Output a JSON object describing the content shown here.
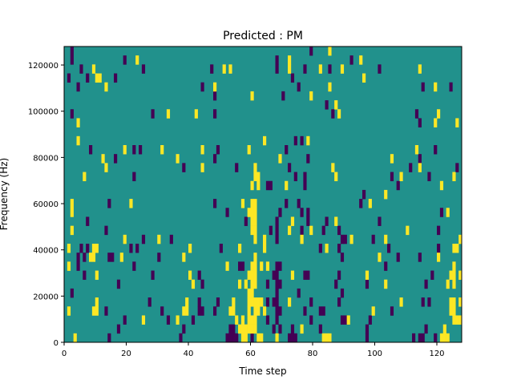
{
  "chart_data": {
    "type": "heatmap",
    "title": "Predicted : PM",
    "xlabel": "Time step",
    "ylabel": "Frequency (Hz)",
    "xlim": [
      0,
      128
    ],
    "ylim": [
      0,
      128000
    ],
    "n_steps": 128,
    "n_bins": 33,
    "xticks": [
      0,
      20,
      40,
      60,
      80,
      100,
      120
    ],
    "yticks": [
      0,
      20000,
      40000,
      60000,
      80000,
      100000,
      120000
    ],
    "ytick_labels": [
      "0",
      "20000",
      "40000",
      "60000",
      "80000",
      "100000",
      "120000"
    ],
    "grid": false,
    "colormap": {
      "low": "#440154",
      "mid": "#21918c",
      "high": "#fde725"
    },
    "values": {
      "low": -1,
      "background": 0,
      "high": 1
    },
    "low_cells_by_bin": {
      "32": [
        2,
        79
      ],
      "31": [
        2,
        19,
        68,
        92
      ],
      "30": [
        5,
        25,
        47,
        68,
        77,
        85,
        101
      ],
      "29": [
        1,
        7,
        16,
        73
      ],
      "28": [
        4,
        44,
        75,
        115,
        124
      ],
      "27": [
        48,
        70
      ],
      "26": [
        84
      ],
      "25": [
        2,
        28,
        48,
        86,
        113
      ],
      "24": [
        114
      ],
      "22": [
        74,
        76
      ],
      "21": [
        8,
        22,
        24,
        49,
        71,
        119
      ],
      "20": [
        16,
        48,
        78,
        114
      ],
      "19": [
        38,
        55,
        72,
        111,
        126
      ],
      "18": [
        22,
        74,
        77,
        105,
        117
      ],
      "17": [
        65,
        66,
        77,
        107
      ],
      "16": [
        96
      ],
      "15": [
        14,
        48,
        71,
        75,
        95
      ],
      "14": [
        52,
        69,
        76,
        78,
        121
      ],
      "13": [
        7,
        58,
        68,
        78,
        84,
        101
      ],
      "12": [
        13,
        66,
        68,
        76,
        83,
        88,
        120
      ],
      "11": [
        25,
        34,
        68,
        89,
        90,
        99
      ],
      "10": [
        5,
        7,
        21,
        23,
        50,
        82,
        88,
        104,
        120
      ],
      "9": [
        4,
        6,
        14,
        15,
        30,
        89,
        107,
        114
      ],
      "8": [
        4,
        22,
        56,
        57,
        68,
        69,
        103
      ],
      "7": [
        6,
        28,
        43,
        67,
        68,
        77,
        78,
        88,
        118
      ],
      "6": [
        17,
        44,
        65,
        68,
        69,
        87,
        97,
        116
      ],
      "5": [
        2,
        68,
        75,
        89
      ],
      "4": [
        27,
        43,
        49,
        65,
        67,
        68,
        79,
        88,
        115,
        117
      ],
      "3": [
        13,
        31,
        43,
        44,
        48,
        68,
        69,
        77,
        82,
        83,
        105
      ],
      "2": [
        19,
        33,
        41,
        65,
        68,
        79,
        89,
        90,
        98
      ],
      "1": [
        17,
        38,
        53,
        54,
        67,
        69,
        73,
        82,
        97,
        116
      ],
      "0": [
        14,
        37,
        52,
        53,
        54,
        55,
        60,
        72,
        73,
        74,
        97,
        112,
        114,
        115,
        119
      ]
    },
    "high_cells_by_bin": {
      "32": [
        85
      ],
      "31": [
        23,
        72,
        95
      ],
      "30": [
        9,
        51,
        53,
        72,
        82,
        89,
        114
      ],
      "29": [
        10,
        11,
        96
      ],
      "28": [
        13,
        48,
        85,
        119
      ],
      "27": [
        60,
        79
      ],
      "26": [
        87
      ],
      "25": [
        33,
        42,
        88,
        120
      ],
      "24": [
        4,
        119,
        126
      ],
      "22": [
        4,
        64,
        78
      ],
      "21": [
        19,
        31,
        44,
        59,
        113
      ],
      "20": [
        12,
        36,
        69,
        105
      ],
      "19": [
        13,
        44,
        61,
        86,
        114
      ],
      "18": [
        6,
        61,
        62,
        87,
        108,
        125
      ],
      "17": [
        60,
        62,
        71,
        121
      ],
      "16": [
        103
      ],
      "15": [
        2,
        21,
        57,
        60,
        61,
        98
      ],
      "14": [
        2,
        59,
        60,
        61,
        123
      ],
      "13": [
        60,
        61,
        73,
        87
      ],
      "12": [
        2,
        60,
        61,
        72,
        79,
        110
      ],
      "11": [
        19,
        30,
        61,
        64,
        76,
        92,
        103,
        127
      ],
      "10": [
        1,
        9,
        10,
        40,
        56,
        64,
        84,
        125,
        126
      ],
      "9": [
        8,
        9,
        18,
        38,
        61,
        101,
        120
      ],
      "8": [
        1,
        52,
        60,
        61,
        63,
        65,
        125
      ],
      "7": [
        10,
        40,
        59,
        60,
        61,
        73,
        97,
        124,
        125,
        127
      ],
      "6": [
        41,
        56,
        58,
        60,
        61,
        103,
        123,
        125
      ],
      "5": [
        59,
        60
      ],
      "4": [
        10,
        39,
        54,
        59,
        60,
        61,
        62,
        63,
        72,
        108,
        124,
        125,
        127
      ],
      "3": [
        1,
        9,
        10,
        38,
        39,
        53,
        54,
        59,
        61,
        62,
        64,
        99,
        124,
        125
      ],
      "2": [
        25,
        36,
        55,
        57,
        59,
        60,
        61,
        91,
        125,
        126,
        127
      ],
      "1": [
        56,
        57,
        58,
        59,
        60,
        61,
        76,
        122
      ],
      "0": [
        3,
        57,
        58,
        62,
        63,
        68,
        83,
        84,
        85,
        121,
        122,
        123
      ]
    }
  }
}
